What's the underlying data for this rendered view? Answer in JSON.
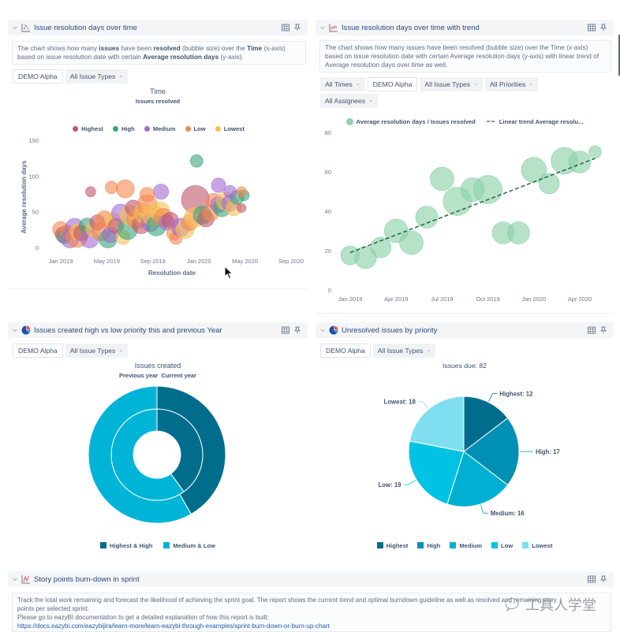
{
  "panels": {
    "p1": {
      "title": "Issue resolution days over time",
      "desc": [
        {
          "t": "The chart shows how many "
        },
        {
          "t": "issues",
          "b": true
        },
        {
          "t": " have been "
        },
        {
          "t": "resolved",
          "b": true
        },
        {
          "t": " (bubble size) over the "
        },
        {
          "t": "Time",
          "b": true
        },
        {
          "t": " (x-axis) based on issue resolution date with certain "
        },
        {
          "t": "Average resolution days",
          "b": true
        },
        {
          "t": " (y-axis)."
        }
      ],
      "filters": [
        {
          "label": "DEMO Alpha",
          "selected": true
        },
        {
          "label": "All Issue Types",
          "dropdown": true
        }
      ],
      "chart_title": "Time",
      "chart_subtitle": "Issues resolved"
    },
    "p2": {
      "title": "Issue resolution days over time with trend",
      "desc": "The chart shows how many issues have been resolved (bubble size) over the Time (x-axis) based on issue resolution date with certain Average resolution days (y-axis) with linear trend of Average resolution days over time as well.",
      "filters": [
        {
          "label": "All Times",
          "dropdown": true
        },
        {
          "label": "DEMO Alpha",
          "selected": true
        },
        {
          "label": "All Issue Types",
          "dropdown": true
        },
        {
          "label": "All Priorities",
          "dropdown": true
        },
        {
          "label": "All Assignees",
          "dropdown": true
        }
      ]
    },
    "p3": {
      "title": "Issues created high vs low priority this and previous Year",
      "filters": [
        {
          "label": "DEMO Alpha",
          "selected": true
        },
        {
          "label": "All Issue Types",
          "dropdown": true
        }
      ],
      "chart_title": "Issues created",
      "chart_subtitle": "Previous year  Current year"
    },
    "p4": {
      "title": "Unresolved issues by priority",
      "filters": [
        {
          "label": "DEMO Alpha",
          "selected": true
        },
        {
          "label": "All Issue Types",
          "dropdown": true
        }
      ],
      "chart_title": "Issues due: 82"
    },
    "p5": {
      "title": "Story points burn-down in sprint",
      "desc_line1": "Track the total work remaining and forecast the likelihood of achieving the sprint goal. The report shows the current trend and optimal burndown guideline as well as resolved and remaining story",
      "desc_line2": "points per selected sprint.",
      "desc_line3": "Please go to eazyBI documentation to get a detailed explanation of how this report is built:",
      "desc_link": "https://docs.eazybi.com/eazybijira/learn-more/learn-eazybi-through-examples/sprint-burn-down-or-burn-up-chart"
    }
  },
  "watermark": "工具人学堂",
  "chart_data": [
    {
      "type": "scatter",
      "subtype": "bubble",
      "title": "Time",
      "subtitle": "Issues resolved",
      "xlabel": "Resolution date",
      "ylabel": "Average resolution days",
      "ylim": [
        0,
        150
      ],
      "y_ticks": [
        0,
        50,
        100,
        150
      ],
      "x_ticks": [
        {
          "month": 0,
          "label": "Jan 2019"
        },
        {
          "month": 4,
          "label": "May 2019"
        },
        {
          "month": 8,
          "label": "Sep 2019"
        },
        {
          "month": 12,
          "label": "Jan 2020"
        },
        {
          "month": 16,
          "label": "May 2020"
        },
        {
          "month": 20,
          "label": "Sep 2020"
        }
      ],
      "x_unit": "months since Jan 2019",
      "legend": "top-center",
      "series": [
        {
          "name": "Highest",
          "color": "#c0566b"
        },
        {
          "name": "High",
          "color": "#3aa57a"
        },
        {
          "name": "Medium",
          "color": "#a36bd3"
        },
        {
          "name": "Low",
          "color": "#f4874f"
        },
        {
          "name": "Lowest",
          "color": "#f6bf55"
        }
      ],
      "points": [
        [
          11.7,
          67,
          60,
          "Highest"
        ],
        [
          0.0,
          25,
          20,
          "Low"
        ],
        [
          0.2,
          18,
          18,
          "Highest"
        ],
        [
          0.3,
          15,
          15,
          "High"
        ],
        [
          0.5,
          22,
          14,
          "Low"
        ],
        [
          0.8,
          12,
          25,
          "Medium"
        ],
        [
          1.2,
          28,
          25,
          "Medium"
        ],
        [
          1.4,
          15,
          35,
          "Low"
        ],
        [
          1.5,
          22,
          20,
          "Lowest"
        ],
        [
          1.8,
          20,
          18,
          "Highest"
        ],
        [
          2.3,
          30,
          20,
          "High"
        ],
        [
          2.5,
          12,
          25,
          "Medium"
        ],
        [
          2.8,
          25,
          16,
          "Lowest"
        ],
        [
          3.2,
          35,
          18,
          "Highest"
        ],
        [
          3.5,
          22,
          25,
          "Low"
        ],
        [
          3.8,
          40,
          20,
          "Low"
        ],
        [
          4.1,
          12,
          25,
          "High"
        ],
        [
          4.3,
          18,
          20,
          "Medium"
        ],
        [
          4.5,
          38,
          18,
          "Lowest"
        ],
        [
          4.8,
          30,
          18,
          "Highest"
        ],
        [
          5.2,
          48,
          25,
          "Medium"
        ],
        [
          5.4,
          14,
          15,
          "Lowest"
        ],
        [
          5.8,
          25,
          30,
          "High"
        ],
        [
          6.0,
          45,
          30,
          "Lowest"
        ],
        [
          6.3,
          55,
          20,
          "Highest"
        ],
        [
          6.6,
          40,
          30,
          "Low"
        ],
        [
          7.0,
          32,
          25,
          "Highest"
        ],
        [
          7.2,
          48,
          30,
          "Lowest"
        ],
        [
          7.5,
          60,
          30,
          "Low"
        ],
        [
          7.8,
          35,
          25,
          "Medium"
        ],
        [
          8.0,
          45,
          35,
          "Lowest"
        ],
        [
          8.3,
          30,
          30,
          "High"
        ],
        [
          8.6,
          50,
          30,
          "Lowest"
        ],
        [
          8.9,
          42,
          25,
          "Low"
        ],
        [
          9.2,
          35,
          18,
          "Medium"
        ],
        [
          9.5,
          38,
          20,
          "Highest"
        ],
        [
          9.8,
          20,
          15,
          "Low"
        ],
        [
          10.0,
          13,
          12,
          "Low"
        ],
        [
          10.4,
          28,
          25,
          "Medium"
        ],
        [
          10.8,
          25,
          25,
          "Lowest"
        ],
        [
          11.2,
          35,
          20,
          "Low"
        ],
        [
          11.6,
          42,
          30,
          "Lowest"
        ],
        [
          12.3,
          45,
          25,
          "High"
        ],
        [
          12.6,
          40,
          20,
          "Highest"
        ],
        [
          13.0,
          48,
          20,
          "Low"
        ],
        [
          13.3,
          65,
          18,
          "Low"
        ],
        [
          13.7,
          60,
          20,
          "Medium"
        ],
        [
          14.0,
          55,
          22,
          "High"
        ],
        [
          14.3,
          65,
          25,
          "Lowest"
        ],
        [
          14.7,
          62,
          20,
          "Medium"
        ],
        [
          15.0,
          55,
          18,
          "Lowest"
        ],
        [
          15.3,
          70,
          15,
          "High"
        ],
        [
          2.6,
          78,
          8,
          "Highest"
        ],
        [
          11.8,
          121,
          12,
          "High"
        ],
        [
          13.7,
          87,
          16,
          "Medium"
        ],
        [
          8.7,
          78,
          18,
          "Medium"
        ],
        [
          5.6,
          82,
          25,
          "Low"
        ],
        [
          4.4,
          84,
          12,
          "Low"
        ],
        [
          7.5,
          74,
          16,
          "Low"
        ],
        [
          15.9,
          73,
          9,
          "High"
        ],
        [
          15.7,
          78,
          8,
          "Low"
        ],
        [
          15.7,
          55,
          6,
          "Highest"
        ],
        [
          14.7,
          78,
          12,
          "Medium"
        ]
      ],
      "point_fields": [
        "month",
        "avg_resolution_days",
        "issues_resolved",
        "priority"
      ]
    },
    {
      "type": "scatter",
      "subtype": "bubble-with-trend",
      "ylim": [
        0,
        80
      ],
      "y_ticks": [
        0,
        20,
        40,
        60,
        80
      ],
      "x_ticks": [
        {
          "month": 0,
          "label": "Jan 2019"
        },
        {
          "month": 3,
          "label": "Apr 2019"
        },
        {
          "month": 6,
          "label": "Jul 2019"
        },
        {
          "month": 9,
          "label": "Oct 2019"
        },
        {
          "month": 12,
          "label": "Jan 2020"
        },
        {
          "month": 15,
          "label": "Apr 2020"
        }
      ],
      "legend": "top-center",
      "legend_items": [
        "Average resolution days / Issues resolved",
        "Linear trend Average resolu..."
      ],
      "bubble_color": "#8fd3ab",
      "trend_color": "#1f6a45",
      "points": [
        [
          0,
          17.6,
          25
        ],
        [
          1,
          16.5,
          34
        ],
        [
          2,
          21.6,
          29
        ],
        [
          3,
          30,
          39
        ],
        [
          4,
          24,
          39
        ],
        [
          5,
          37,
          34
        ],
        [
          6,
          56.4,
          39
        ],
        [
          7,
          45,
          56
        ],
        [
          8,
          51,
          39
        ],
        [
          9,
          51,
          56
        ],
        [
          10,
          29,
          34
        ],
        [
          11,
          29,
          34
        ],
        [
          12,
          61,
          44
        ],
        [
          13,
          54,
          29
        ],
        [
          14,
          65.6,
          50
        ],
        [
          15,
          65,
          34
        ],
        [
          16,
          70,
          11
        ]
      ],
      "point_fields": [
        "month",
        "avg_resolution_days",
        "issues_resolved"
      ],
      "trend": {
        "x0": 0,
        "y0": 19,
        "x1": 16,
        "y1": 66.8
      }
    },
    {
      "type": "pie",
      "subtype": "donut",
      "title": "Issues created",
      "subtitle": "Previous year  Current year",
      "categories": [
        "Highest & High",
        "Medium & Low"
      ],
      "colors": [
        "#006d8d",
        "#00b4d8"
      ],
      "series": [
        {
          "name": "Previous year",
          "ring": "inner",
          "values": [
            40,
            60
          ]
        },
        {
          "name": "Current year",
          "ring": "outer",
          "values": [
            41.7,
            58.3
          ]
        }
      ],
      "legend": "bottom-center"
    },
    {
      "type": "pie",
      "title": "Issues due: 82",
      "categories": [
        "Highest",
        "High",
        "Medium",
        "Low",
        "Lowest"
      ],
      "values": [
        12,
        17,
        16,
        19,
        18
      ],
      "colors": [
        "#006d8d",
        "#0090b3",
        "#00b0d3",
        "#00c3e3",
        "#7fdeef"
      ],
      "legend": "bottom-center"
    }
  ]
}
